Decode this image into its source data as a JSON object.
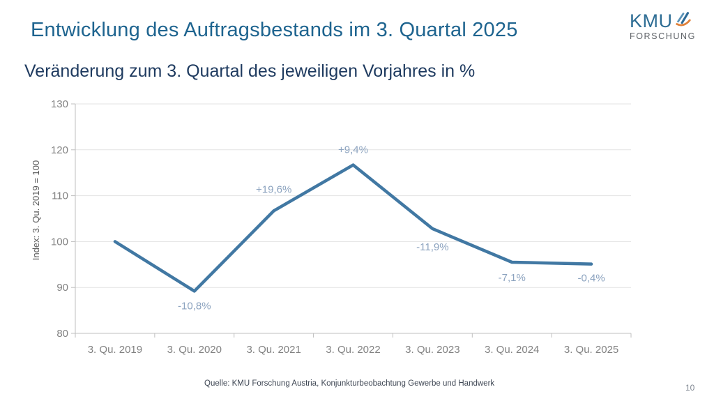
{
  "header": {
    "title": "Entwicklung des Auftragsbestands im 3. Quartal 2025",
    "subtitle": "Veränderung zum 3. Quartal des jeweiligen Vorjahres in %"
  },
  "logo": {
    "name": "KMU",
    "subtext": "FORSCHUNG",
    "icon": "quill-leaf-icon",
    "colors": {
      "text": "#2e6d94",
      "subtext": "#5d6166",
      "icon_blue_dark": "#2f6b96",
      "icon_blue_light": "#5b93b8",
      "icon_orange": "#e0813a"
    }
  },
  "chart_data": {
    "type": "line",
    "title": "",
    "categories": [
      "3. Qu. 2019",
      "3. Qu. 2020",
      "3. Qu. 2021",
      "3. Qu. 2022",
      "3. Qu. 2023",
      "3. Qu. 2024",
      "3. Qu. 2025"
    ],
    "values": [
      100,
      89.2,
      106.7,
      116.7,
      102.8,
      95.5,
      95.1
    ],
    "point_labels": [
      "",
      "-10,8%",
      "+19,6%",
      "+9,4%",
      "-11,9%",
      "-7,1%",
      "-0,4%"
    ],
    "label_dy": [
      0,
      26,
      -26,
      -17,
      31,
      27,
      25
    ],
    "xlabel": "",
    "ylabel": "Index: 3. Qu. 2019 = 100",
    "ylim": [
      80,
      130
    ],
    "yticks": [
      80,
      90,
      100,
      110,
      120,
      130
    ],
    "grid": true,
    "legend": "none",
    "colors": {
      "line": "#4178a3",
      "point_label": "#8ca3bf",
      "axis": "#bfbfbf",
      "gridline": "#e3e3e3",
      "tick_label": "#828282",
      "axis_title": "#595959"
    }
  },
  "footer": {
    "source": "Quelle: KMU Forschung Austria, Konjunkturbeobachtung Gewerbe und Handwerk",
    "page_number": "10"
  }
}
